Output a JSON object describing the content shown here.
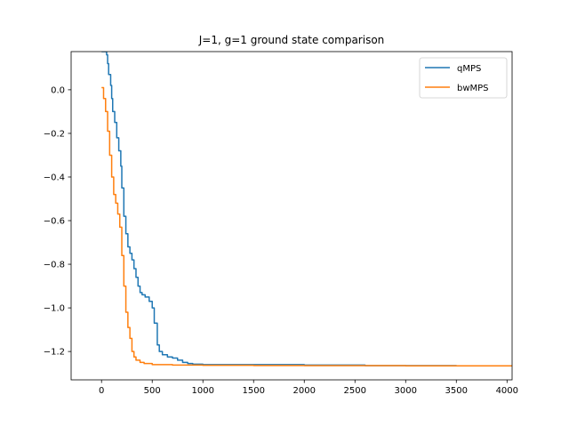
{
  "chart_data": {
    "type": "line",
    "title": "J=1, g=1 ground state comparison",
    "xlabel": "",
    "ylabel": "",
    "xlim": [
      -300,
      4050
    ],
    "ylim": [
      -1.33,
      0.175
    ],
    "xticks": [
      0,
      500,
      1000,
      1500,
      2000,
      2500,
      3000,
      3500,
      4000
    ],
    "xtick_labels": [
      "0",
      "500",
      "1000",
      "1500",
      "2000",
      "2500",
      "3000",
      "3500",
      "4000"
    ],
    "yticks": [
      0.0,
      -0.2,
      -0.4,
      -0.6,
      -0.8,
      -1.0,
      -1.2
    ],
    "ytick_labels": [
      "0.0",
      "−0.2",
      "−0.4",
      "−0.6",
      "−0.8",
      "−1.0",
      "−1.2"
    ],
    "grid": false,
    "legend_position": "top-right",
    "series": [
      {
        "name": "qMPS",
        "color": "#1f77b4",
        "step": true,
        "x": [
          0,
          50,
          60,
          70,
          90,
          100,
          110,
          130,
          150,
          170,
          190,
          200,
          220,
          240,
          260,
          280,
          300,
          320,
          340,
          360,
          380,
          400,
          430,
          470,
          500,
          520,
          550,
          570,
          600,
          650,
          700,
          750,
          800,
          850,
          900,
          1000,
          1500,
          2000,
          2300,
          2600,
          3000,
          3500,
          4050
        ],
        "y": [
          0.175,
          0.16,
          0.12,
          0.07,
          0.02,
          -0.04,
          -0.1,
          -0.15,
          -0.22,
          -0.28,
          -0.35,
          -0.45,
          -0.58,
          -0.66,
          -0.72,
          -0.75,
          -0.78,
          -0.82,
          -0.86,
          -0.9,
          -0.93,
          -0.94,
          -0.95,
          -0.97,
          -1.0,
          -1.07,
          -1.17,
          -1.2,
          -1.215,
          -1.225,
          -1.23,
          -1.24,
          -1.25,
          -1.255,
          -1.258,
          -1.26,
          -1.26,
          -1.262,
          -1.262,
          -1.265,
          -1.265,
          -1.266,
          -1.267
        ]
      },
      {
        "name": "bwMPS",
        "color": "#ff7f0e",
        "step": true,
        "x": [
          0,
          20,
          40,
          60,
          80,
          100,
          120,
          140,
          160,
          180,
          200,
          220,
          240,
          260,
          280,
          300,
          320,
          340,
          380,
          420,
          500,
          700,
          1000,
          1500,
          2000,
          2500,
          3000,
          3500,
          4050
        ],
        "y": [
          0.01,
          -0.04,
          -0.1,
          -0.19,
          -0.3,
          -0.4,
          -0.48,
          -0.52,
          -0.57,
          -0.63,
          -0.76,
          -0.9,
          -1.02,
          -1.09,
          -1.14,
          -1.2,
          -1.225,
          -1.24,
          -1.25,
          -1.255,
          -1.26,
          -1.262,
          -1.263,
          -1.264,
          -1.265,
          -1.265,
          -1.266,
          -1.266,
          -1.266
        ]
      }
    ]
  }
}
